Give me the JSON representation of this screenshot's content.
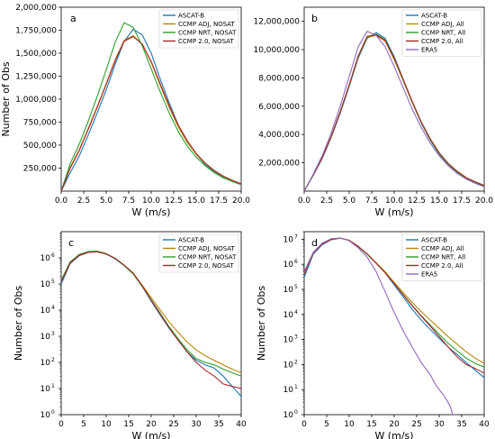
{
  "chart_data": [
    {
      "panel": "a",
      "type": "line",
      "scale": "linear",
      "xlabel": "W (m/s)",
      "ylabel": "Number of Obs",
      "xlim": [
        0,
        20
      ],
      "ylim": [
        0,
        2000000
      ],
      "xticks": [
        "0.0",
        "2.5",
        "5.0",
        "7.5",
        "10.0",
        "12.5",
        "15.0",
        "17.5",
        "20.0"
      ],
      "yticks": [
        "250,000",
        "500,000",
        "750,000",
        "1,000,000",
        "1,250,000",
        "1,500,000",
        "1,750,000",
        "2,000,000"
      ],
      "legend_position": "top-right",
      "series": [
        {
          "name": "ASCAT-B",
          "color": "#1f77b4",
          "x": [
            0,
            1,
            2,
            3,
            4,
            5,
            6,
            7,
            8,
            9,
            10,
            11,
            12,
            13,
            14,
            15,
            16,
            17,
            18,
            19,
            20
          ],
          "y": [
            0,
            200000,
            380000,
            610000,
            850000,
            1100000,
            1380000,
            1630000,
            1760000,
            1700000,
            1500000,
            1220000,
            960000,
            720000,
            540000,
            400000,
            290000,
            210000,
            155000,
            110000,
            70000
          ]
        },
        {
          "name": "CCMP ADJ, NOSAT",
          "color": "#b8860b",
          "x": [
            0,
            1,
            2,
            3,
            4,
            5,
            6,
            7,
            8,
            9,
            10,
            11,
            12,
            13,
            14,
            15,
            16,
            17,
            18,
            19,
            20
          ],
          "y": [
            0,
            260000,
            450000,
            680000,
            920000,
            1170000,
            1430000,
            1640000,
            1690000,
            1600000,
            1400000,
            1150000,
            910000,
            700000,
            530000,
            400000,
            300000,
            220000,
            160000,
            115000,
            75000
          ]
        },
        {
          "name": "CCMP NRT, NOSAT",
          "color": "#2ca02c",
          "x": [
            0,
            1,
            2,
            3,
            4,
            5,
            6,
            7,
            8,
            9,
            10,
            11,
            12,
            13,
            14,
            15,
            16,
            17,
            18,
            19,
            20
          ],
          "y": [
            0,
            300000,
            510000,
            760000,
            1030000,
            1320000,
            1620000,
            1830000,
            1780000,
            1580000,
            1330000,
            1080000,
            850000,
            650000,
            490000,
            370000,
            275000,
            200000,
            145000,
            105000,
            70000
          ]
        },
        {
          "name": "CCMP 2.0, NOSAT",
          "color": "#a52a2a",
          "x": [
            0,
            1,
            2,
            3,
            4,
            5,
            6,
            7,
            8,
            9,
            10,
            11,
            12,
            13,
            14,
            15,
            16,
            17,
            18,
            19,
            20
          ],
          "y": [
            0,
            250000,
            440000,
            670000,
            910000,
            1160000,
            1420000,
            1630000,
            1680000,
            1600000,
            1410000,
            1170000,
            930000,
            720000,
            550000,
            410000,
            305000,
            225000,
            165000,
            118000,
            80000
          ]
        }
      ]
    },
    {
      "panel": "b",
      "type": "line",
      "scale": "linear",
      "xlabel": "W (m/s)",
      "ylabel": "",
      "xlim": [
        0,
        20
      ],
      "ylim": [
        0,
        13000000
      ],
      "xticks": [
        "0.0",
        "2.5",
        "5.0",
        "7.5",
        "10.0",
        "12.5",
        "15.0",
        "17.5",
        "20.0"
      ],
      "yticks": [
        "2,000,000",
        "4,000,000",
        "6,000,000",
        "8,000,000",
        "10,000,000",
        "12,000,000"
      ],
      "legend_position": "top-right",
      "series": [
        {
          "name": "ASCAT-B",
          "color": "#1f77b4",
          "x": [
            0,
            1,
            2,
            3,
            4,
            5,
            6,
            7,
            8,
            9,
            10,
            11,
            12,
            13,
            14,
            15,
            16,
            17,
            18,
            19,
            20
          ],
          "y": [
            0,
            1100000,
            2300000,
            3800000,
            5500000,
            7400000,
            9400000,
            10800000,
            11200000,
            10800000,
            9500000,
            7900000,
            6300000,
            4800000,
            3600000,
            2600000,
            1900000,
            1300000,
            900000,
            600000,
            350000
          ]
        },
        {
          "name": "CCMP ADJ, All",
          "color": "#b8860b",
          "x": [
            0,
            1,
            2,
            3,
            4,
            5,
            6,
            7,
            8,
            9,
            10,
            11,
            12,
            13,
            14,
            15,
            16,
            17,
            18,
            19,
            20
          ],
          "y": [
            0,
            1150000,
            2350000,
            3850000,
            5600000,
            7500000,
            9500000,
            10850000,
            11000000,
            10600000,
            9300000,
            7800000,
            6250000,
            4850000,
            3650000,
            2700000,
            1950000,
            1400000,
            950000,
            650000,
            400000
          ]
        },
        {
          "name": "CCMP NRT, All",
          "color": "#2ca02c",
          "x": [
            0,
            1,
            2,
            3,
            4,
            5,
            6,
            7,
            8,
            9,
            10,
            11,
            12,
            13,
            14,
            15,
            16,
            17,
            18,
            19,
            20
          ],
          "y": [
            0,
            1150000,
            2350000,
            3850000,
            5600000,
            7500000,
            9550000,
            10900000,
            11100000,
            10700000,
            9400000,
            7850000,
            6300000,
            4850000,
            3650000,
            2650000,
            1900000,
            1350000,
            920000,
            620000,
            380000
          ]
        },
        {
          "name": "CCMP 2.0, All",
          "color": "#a52a2a",
          "x": [
            0,
            1,
            2,
            3,
            4,
            5,
            6,
            7,
            8,
            9,
            10,
            11,
            12,
            13,
            14,
            15,
            16,
            17,
            18,
            19,
            20
          ],
          "y": [
            0,
            1150000,
            2350000,
            3850000,
            5600000,
            7500000,
            9550000,
            10950000,
            11050000,
            10650000,
            9400000,
            7900000,
            6350000,
            4900000,
            3700000,
            2700000,
            1950000,
            1400000,
            950000,
            650000,
            400000
          ]
        },
        {
          "name": "ERA5",
          "color": "#9467bd",
          "x": [
            0,
            1,
            2,
            3,
            4,
            5,
            6,
            7,
            8,
            9,
            10,
            11,
            12,
            13,
            14,
            15,
            16,
            17,
            18,
            19,
            20
          ],
          "y": [
            0,
            1200000,
            2500000,
            4100000,
            6000000,
            8100000,
            10200000,
            11300000,
            11000000,
            10200000,
            8800000,
            7300000,
            5800000,
            4500000,
            3400000,
            2500000,
            1800000,
            1250000,
            850000,
            550000,
            300000
          ]
        }
      ]
    },
    {
      "panel": "c",
      "type": "line",
      "scale": "log",
      "xlabel": "W (m/s)",
      "ylabel": "Number of Obs",
      "xlim": [
        0,
        40
      ],
      "ylim": [
        1,
        10000000
      ],
      "xticks": [
        "0",
        "5",
        "10",
        "15",
        "20",
        "25",
        "30",
        "35",
        "40"
      ],
      "yticks": [
        "10",
        "10",
        "10",
        "10",
        "10",
        "10",
        "10"
      ],
      "ytick_exponents": [
        "0",
        "1",
        "2",
        "3",
        "4",
        "5",
        "6"
      ],
      "legend_position": "top-right",
      "series": [
        {
          "name": "ASCAT-B",
          "color": "#1f77b4",
          "x": [
            0,
            2,
            4,
            6,
            8,
            10,
            12,
            14,
            16,
            18,
            20,
            22,
            24,
            26,
            28,
            30,
            32,
            34,
            36,
            38,
            40
          ],
          "y": [
            100000,
            600000,
            1200000,
            1600000,
            1700000,
            1400000,
            900000,
            500000,
            250000,
            80000,
            22000,
            6500,
            2000,
            700,
            250,
            120,
            80,
            60,
            30,
            12,
            5
          ]
        },
        {
          "name": "CCMP ADJ, NOSAT",
          "color": "#b8860b",
          "x": [
            0,
            2,
            4,
            6,
            8,
            10,
            12,
            14,
            16,
            18,
            20,
            22,
            24,
            26,
            28,
            30,
            32,
            34,
            36,
            38,
            40
          ],
          "y": [
            120000,
            650000,
            1250000,
            1650000,
            1700000,
            1400000,
            950000,
            520000,
            260000,
            90000,
            30000,
            10000,
            3500,
            1400,
            600,
            300,
            180,
            120,
            80,
            55,
            40
          ]
        },
        {
          "name": "CCMP NRT, NOSAT",
          "color": "#2ca02c",
          "x": [
            0,
            2,
            4,
            6,
            8,
            10,
            12,
            14,
            16,
            18,
            20,
            22,
            24,
            26,
            28,
            30,
            32,
            34,
            36,
            38,
            40
          ],
          "y": [
            140000,
            700000,
            1350000,
            1750000,
            1800000,
            1450000,
            950000,
            500000,
            240000,
            80000,
            25000,
            7500,
            2300,
            800,
            300,
            140,
            100,
            80,
            55,
            40,
            30
          ]
        },
        {
          "name": "CCMP 2.0, NOSAT",
          "color": "#a52a2a",
          "x": [
            0,
            2,
            4,
            6,
            8,
            10,
            12,
            14,
            16,
            18,
            20,
            22,
            24,
            26,
            28,
            30,
            32,
            34,
            36,
            38,
            40
          ],
          "y": [
            120000,
            650000,
            1250000,
            1650000,
            1700000,
            1400000,
            950000,
            520000,
            260000,
            85000,
            24000,
            7000,
            2100,
            700,
            250,
            100,
            50,
            30,
            15,
            12,
            10
          ]
        }
      ]
    },
    {
      "panel": "d",
      "type": "line",
      "scale": "log",
      "xlabel": "W (m/s)",
      "ylabel": "Number of Obs",
      "xlim": [
        0,
        40
      ],
      "ylim": [
        1,
        20000000
      ],
      "xticks": [
        "0",
        "5",
        "10",
        "15",
        "20",
        "25",
        "30",
        "35",
        "40"
      ],
      "yticks": [
        "10",
        "10",
        "10",
        "10",
        "10",
        "10",
        "10",
        "10"
      ],
      "ytick_exponents": [
        "0",
        "1",
        "2",
        "3",
        "4",
        "5",
        "6",
        "7"
      ],
      "legend_position": "top-right",
      "series": [
        {
          "name": "ASCAT-B",
          "color": "#1f77b4",
          "x": [
            0,
            2,
            4,
            6,
            8,
            10,
            12,
            14,
            16,
            18,
            20,
            22,
            24,
            26,
            28,
            30,
            32,
            34,
            36,
            38,
            40
          ],
          "y": [
            300000,
            2500000,
            6000000,
            9500000,
            11000000,
            9000000,
            5000000,
            2500000,
            1100000,
            450000,
            150000,
            50000,
            16000,
            6000,
            2500,
            1100,
            500,
            250,
            120,
            60,
            30
          ]
        },
        {
          "name": "CCMP ADJ, All",
          "color": "#b8860b",
          "x": [
            0,
            2,
            4,
            6,
            8,
            10,
            12,
            14,
            16,
            18,
            20,
            22,
            24,
            26,
            28,
            30,
            32,
            34,
            36,
            38,
            40
          ],
          "y": [
            400000,
            2800000,
            6500000,
            9800000,
            11000000,
            9000000,
            5200000,
            2600000,
            1150000,
            500000,
            190000,
            75000,
            30000,
            13000,
            6000,
            2800,
            1300,
            650,
            320,
            180,
            110
          ]
        },
        {
          "name": "CCMP NRT, All",
          "color": "#2ca02c",
          "x": [
            0,
            2,
            4,
            6,
            8,
            10,
            12,
            14,
            16,
            18,
            20,
            22,
            24,
            26,
            28,
            30,
            32,
            34,
            36,
            38,
            40
          ],
          "y": [
            420000,
            2900000,
            6700000,
            10000000,
            11100000,
            9000000,
            5100000,
            2500000,
            1100000,
            460000,
            170000,
            62000,
            23000,
            9000,
            3800,
            1600,
            700,
            350,
            180,
            110,
            80
          ]
        },
        {
          "name": "CCMP 2.0, All",
          "color": "#a52a2a",
          "x": [
            0,
            2,
            4,
            6,
            8,
            10,
            12,
            14,
            16,
            18,
            20,
            22,
            24,
            26,
            28,
            30,
            32,
            34,
            36,
            38,
            40
          ],
          "y": [
            400000,
            2800000,
            6500000,
            9800000,
            11000000,
            9000000,
            5200000,
            2600000,
            1100000,
            460000,
            170000,
            60000,
            22000,
            8500,
            3400,
            1300,
            500,
            200,
            100,
            70,
            45
          ]
        },
        {
          "name": "ERA5",
          "color": "#9467bd",
          "x": [
            0,
            2,
            4,
            6,
            8,
            10,
            12,
            14,
            16,
            18,
            20,
            22,
            24,
            26,
            28,
            29,
            30,
            31,
            32,
            32.5,
            33,
            33.5
          ],
          "y": [
            500000,
            3000000,
            7000000,
            10500000,
            11200000,
            8700000,
            4500000,
            1900000,
            500000,
            80000,
            12000,
            2200,
            500,
            120,
            40,
            18,
            10,
            6,
            3,
            2,
            1,
            1
          ]
        }
      ]
    }
  ]
}
